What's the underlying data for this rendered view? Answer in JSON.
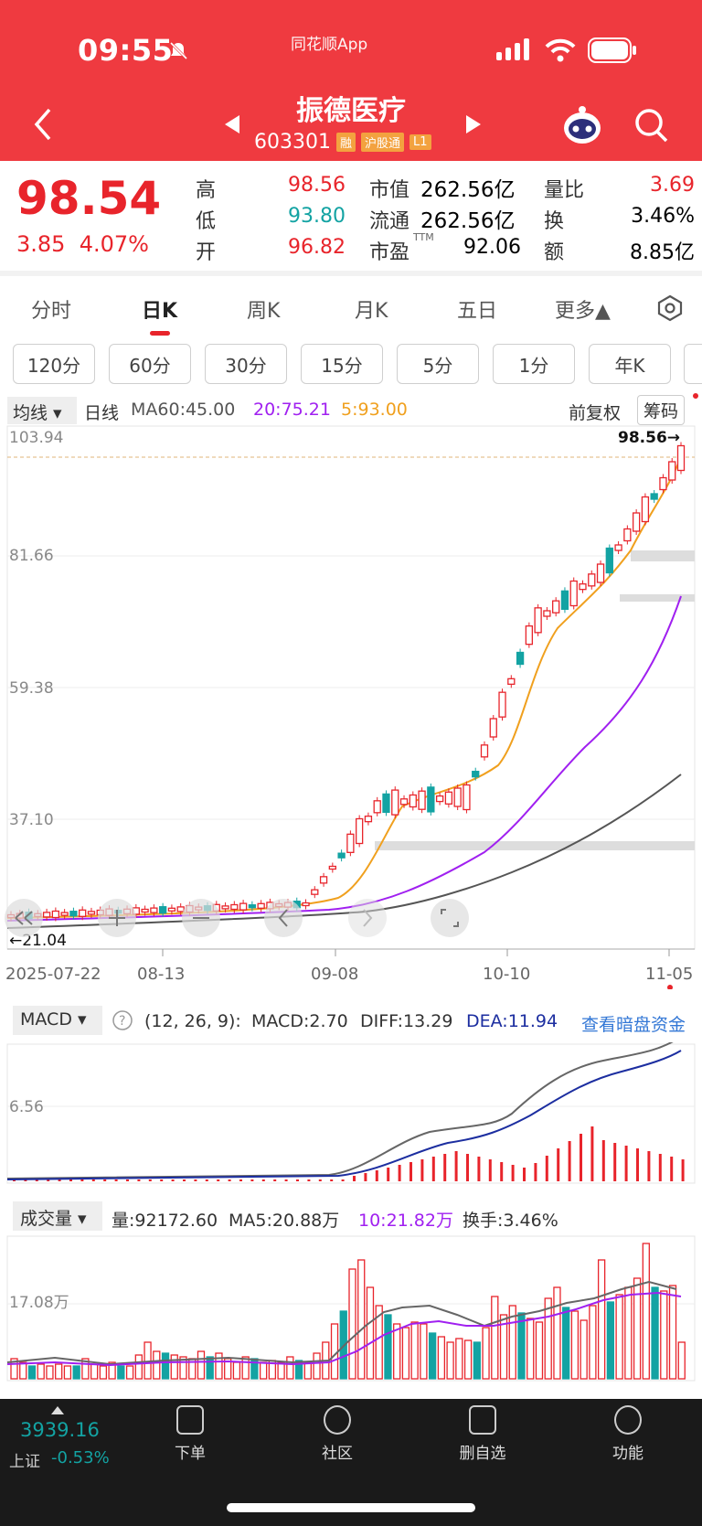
{
  "status": {
    "time": "09:55",
    "app_label": "同花顺App"
  },
  "header": {
    "title": "振德医疗",
    "code": "603301",
    "tags": [
      "融",
      "沪股通",
      "L1"
    ]
  },
  "quote": {
    "price": "98.54",
    "change": "3.85",
    "change_pct": "4.07%",
    "high_label": "高",
    "high": "98.56",
    "low_label": "低",
    "low": "93.80",
    "open_label": "开",
    "open": "96.82",
    "mcap_label": "市值",
    "mcap": "262.56亿",
    "float_label": "流通",
    "float": "262.56亿",
    "pe_label": "市盈",
    "pe_sup": "TTM",
    "pe": "92.06",
    "vr_label": "量比",
    "vr": "3.69",
    "turn_label": "换",
    "turn": "3.46%",
    "amt_label": "额",
    "amt": "8.85亿"
  },
  "tabs": [
    "分时",
    "日K",
    "周K",
    "月K",
    "五日",
    "更多▲"
  ],
  "periods": [
    "120分",
    "60分",
    "30分",
    "15分",
    "5分",
    "1分",
    "年K"
  ],
  "ma_bar": {
    "selector": "均线",
    "line": "日线",
    "ma60": "MA60:45.00",
    "ma20": "20:75.21",
    "ma5": "5:93.00",
    "adj": "前复权",
    "chips": "筹码"
  },
  "kline_axis": {
    "y_ticks": [
      "103.94",
      "81.66",
      "59.38",
      "37.10"
    ],
    "max_marker": "98.56→",
    "min_marker": "←21.04",
    "dates": [
      "2025-07-22",
      "08-13",
      "09-08",
      "10-10",
      "11-05"
    ]
  },
  "macd": {
    "selector": "MACD",
    "params": "(12, 26, 9):",
    "macd": "MACD:2.70",
    "diff": "DIFF:13.29",
    "dea": "DEA:11.94",
    "link": "查看暗盘资金",
    "tick": "6.56"
  },
  "volume": {
    "selector": "成交量",
    "vol": "量:92172.60",
    "ma5": "MA5:20.88万",
    "ma10": "10:21.82万",
    "turnover": "换手:3.46%",
    "tick": "17.08万"
  },
  "bottom": {
    "index_value": "3939.16",
    "index_name": "上证",
    "index_chg": "-0.53%",
    "items": [
      "下单",
      "社区",
      "删自选",
      "功能"
    ]
  },
  "colors": {
    "up": "#e8242b",
    "down": "#13a3a3",
    "header": "#ef3a40",
    "ma5": "#f0a01e",
    "ma20": "#a020f0",
    "ma60": "#555555"
  }
}
